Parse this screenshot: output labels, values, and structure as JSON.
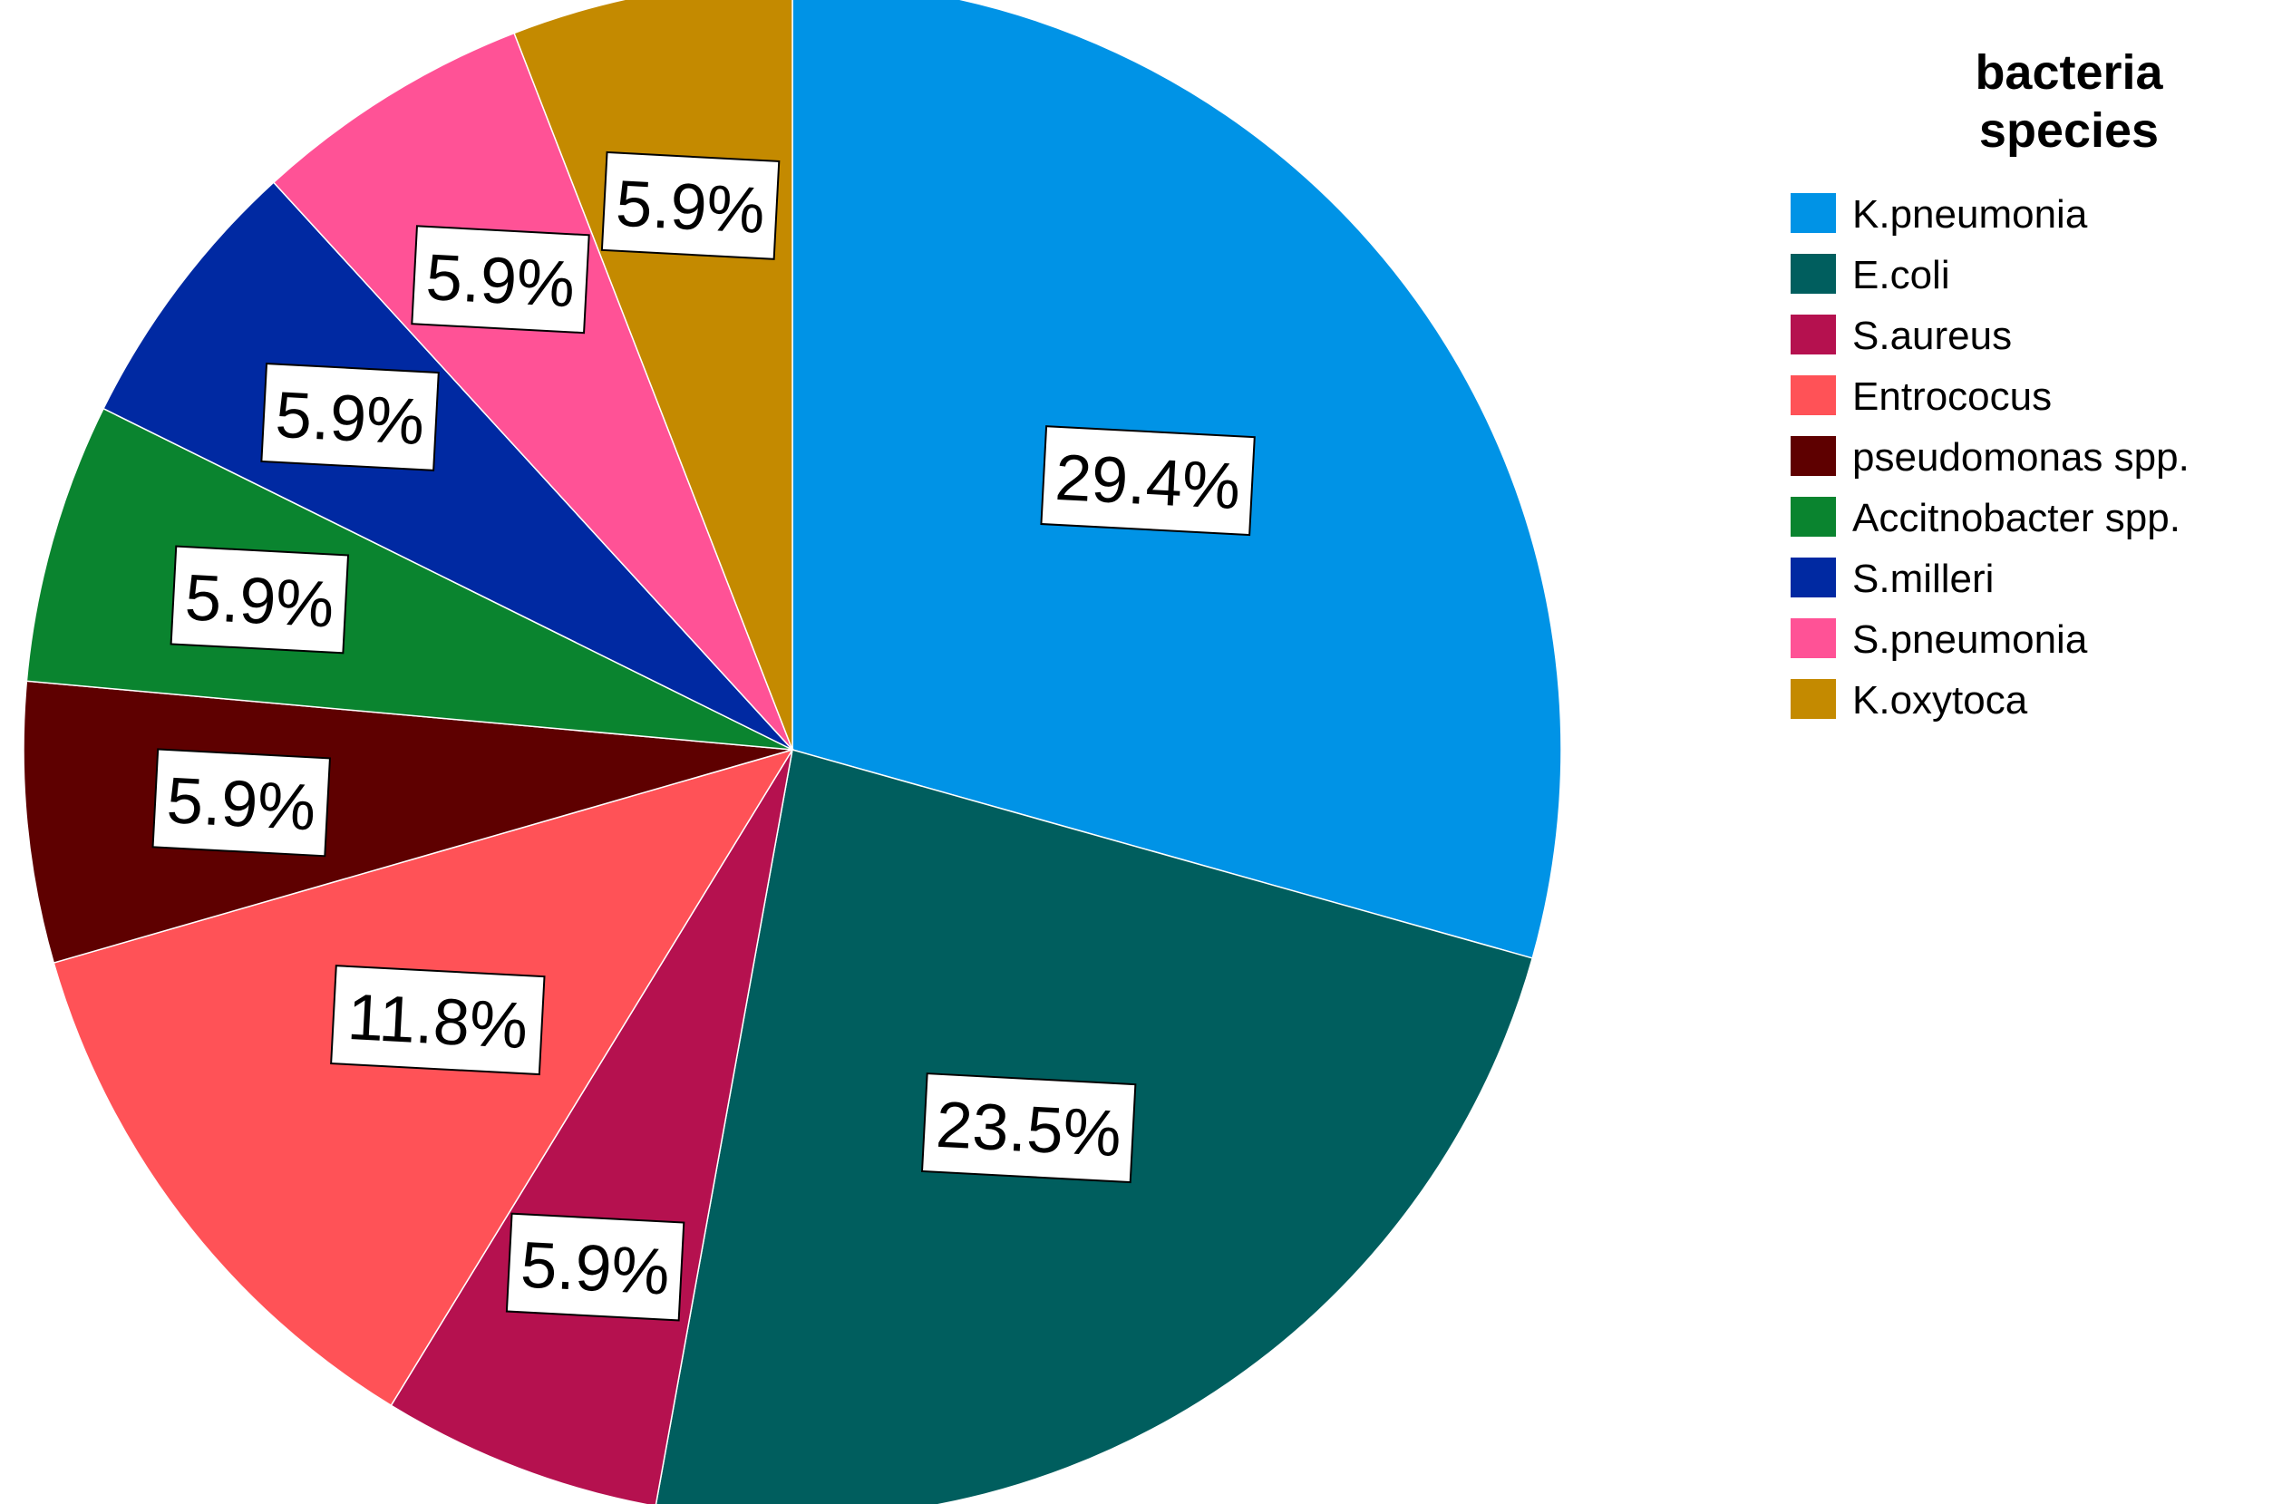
{
  "chart_data": {
    "type": "pie",
    "legend_title_lines": [
      "bacteria",
      "species"
    ],
    "legend_position": "top-right",
    "categories": [
      "K.pneumonia",
      "E.coli",
      "S.aureus",
      "Entrococus",
      "pseudomonas spp.",
      "Accitnobacter spp.",
      "S.milleri",
      "S.pneumonia",
      "K.oxytoca"
    ],
    "values": [
      29.4,
      23.5,
      5.9,
      11.8,
      5.9,
      5.9,
      5.9,
      5.9,
      5.9
    ],
    "labels": [
      "29.4%",
      "23.5%",
      "5.9%",
      "11.8%",
      "5.9%",
      "5.9%",
      "5.9%",
      "5.9%",
      "5.9%"
    ],
    "colors": [
      "#0093E6",
      "#005E5E",
      "#B5114F",
      "#FF5257",
      "#5E0000",
      "#0A842F",
      "#0029A2",
      "#FF5296",
      "#C48A00"
    ],
    "start_angle": "12 o'clock",
    "direction": "clockwise"
  }
}
